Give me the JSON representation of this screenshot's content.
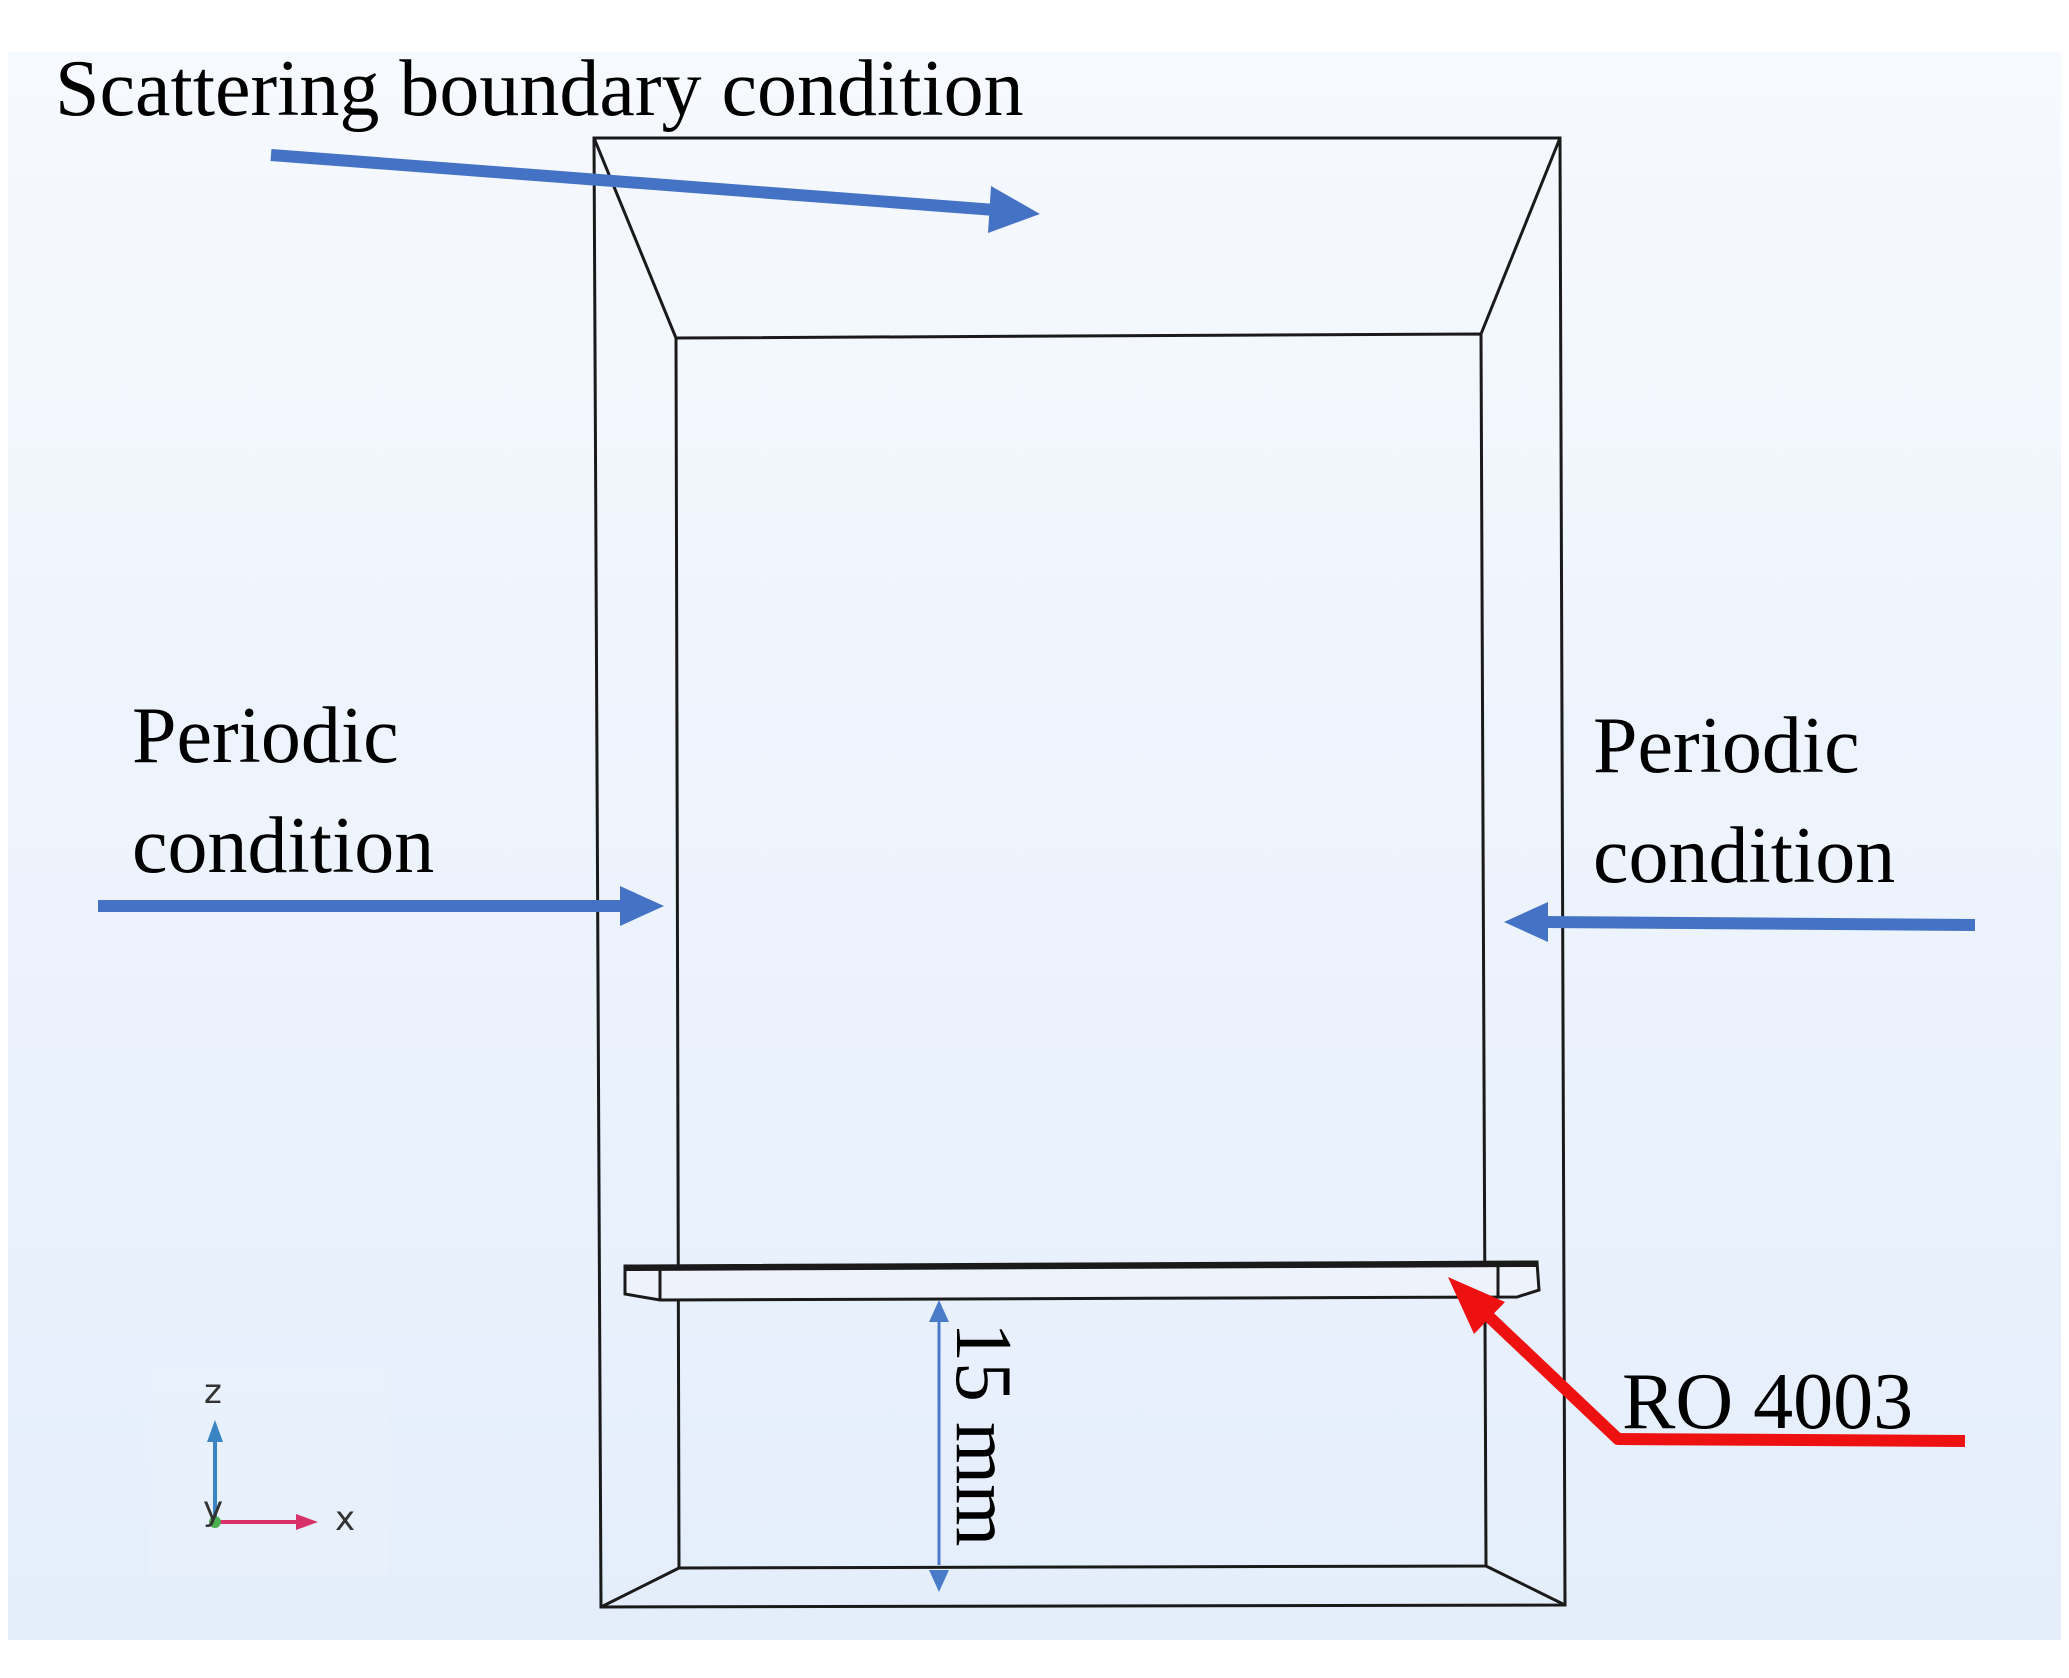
{
  "labels": {
    "top": "Scattering boundary condition",
    "left_line1": "Periodic",
    "left_line2": "condition",
    "right_line1": "Periodic",
    "right_line2": "condition",
    "substrate": "RO 4003",
    "dimension": "15 mm"
  },
  "axes": {
    "z": "z",
    "y": "y",
    "x": "x"
  },
  "colors": {
    "background_top": "#f6f9fe",
    "background_bottom": "#e4eefb",
    "outline": "#1a1a1a",
    "blue_arrow": "#4472c4",
    "red_arrow": "#ee1111",
    "dimension_line": "#4a7bc8",
    "axis_z": "#3a84c4",
    "axis_x": "#d8316a",
    "axis_y": "#4caf50"
  }
}
